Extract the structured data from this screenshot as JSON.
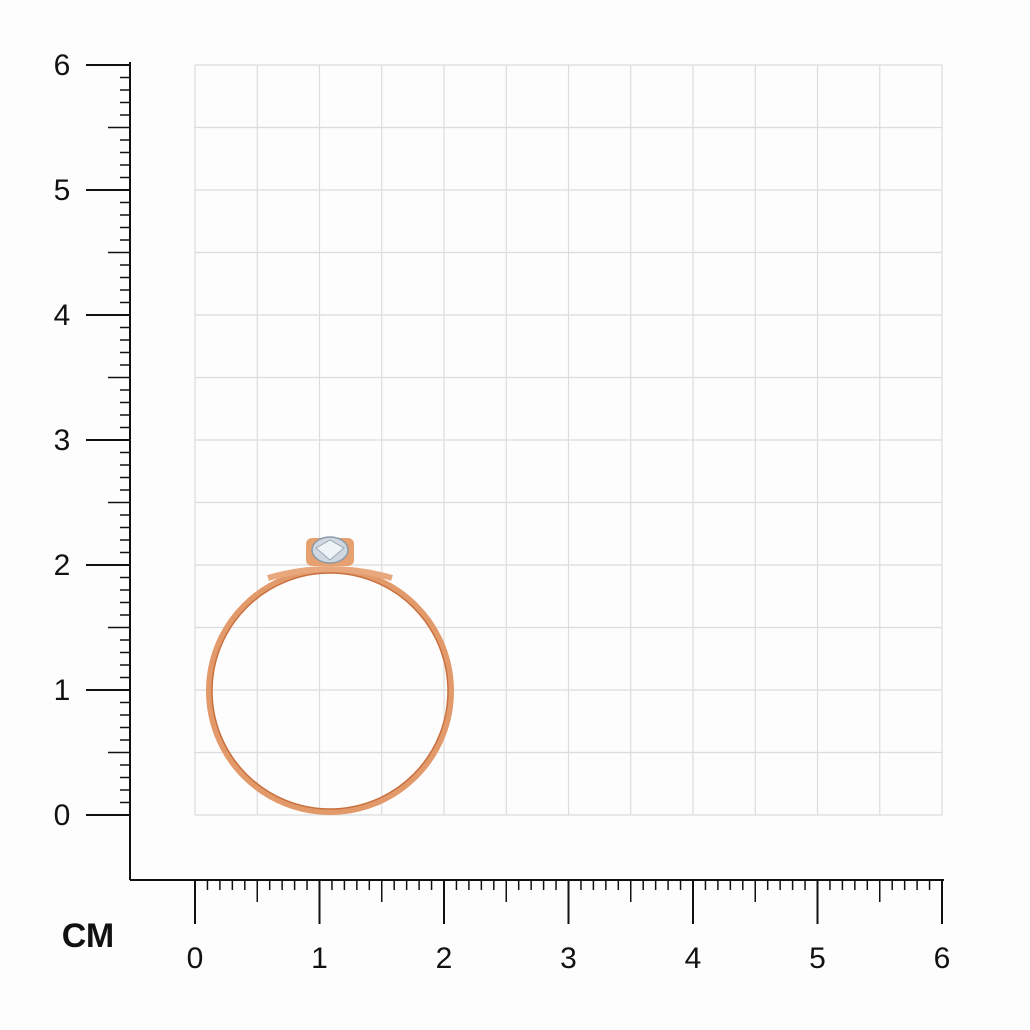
{
  "ruler": {
    "unit": "СМ",
    "y_labels": [
      0,
      1,
      2,
      3,
      4,
      5,
      6
    ],
    "x_labels": [
      0,
      1,
      2,
      3,
      4,
      5,
      6
    ]
  }
}
